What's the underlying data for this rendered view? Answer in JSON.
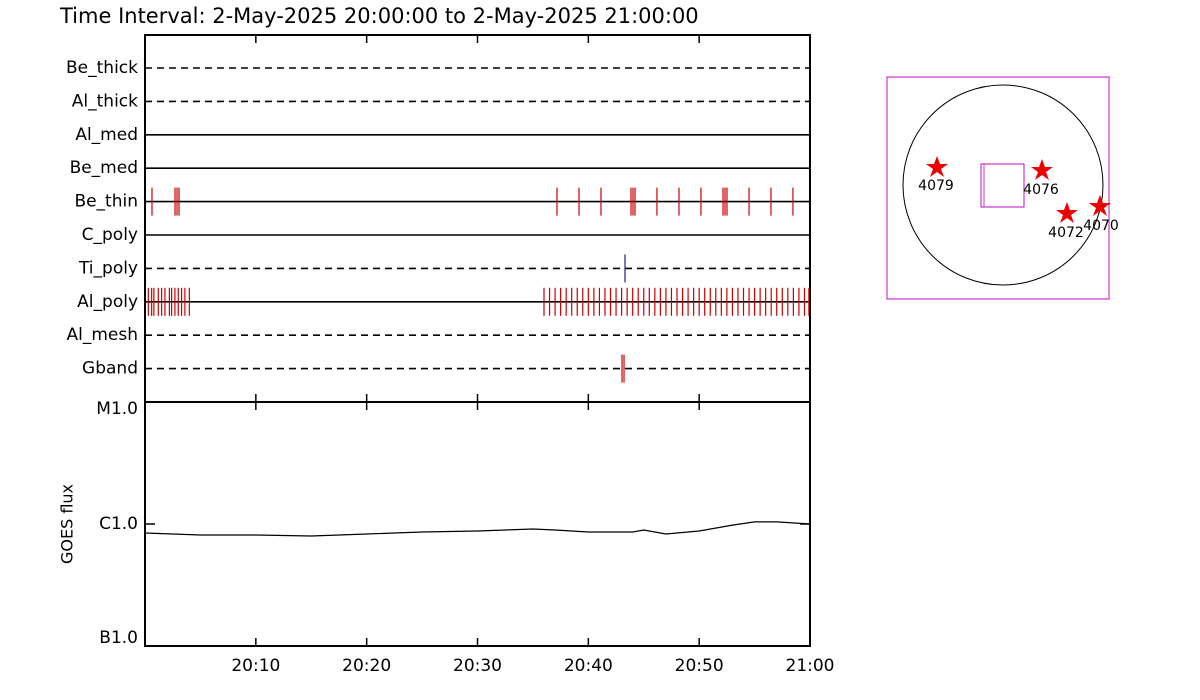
{
  "chart_data": [
    {
      "type": "timeline",
      "title": "Time Interval:  2-May-2025 20:00:00 to  2-May-2025 21:00:00",
      "xlim": [
        0,
        60
      ],
      "series": [
        {
          "name": "Be_thick",
          "line": "dashed",
          "color": "#cc0000",
          "values": []
        },
        {
          "name": "Al_thick",
          "line": "dashed",
          "color": "#cc0000",
          "values": []
        },
        {
          "name": "Al_med",
          "line": "solid",
          "color": "#cc0000",
          "values": []
        },
        {
          "name": "Be_med",
          "line": "solid",
          "color": "#cc0000",
          "values": []
        },
        {
          "name": "Be_thin",
          "line": "solid",
          "color": "#cc0000",
          "values": [
            0.63,
            2.71,
            2.89,
            3.07,
            37.17,
            39.16,
            41.14,
            43.85,
            44.03,
            44.21,
            46.19,
            48.18,
            50.16,
            52.15,
            52.33,
            52.51,
            54.5,
            56.48,
            58.46
          ]
        },
        {
          "name": "C_poly",
          "line": "solid",
          "color": "#cc0000",
          "values": []
        },
        {
          "name": "Ti_poly",
          "line": "dashed",
          "color": "#1a1a99",
          "values": [
            43.31
          ]
        },
        {
          "name": "Al_poly",
          "line": "solid",
          "color": "#cc0000",
          "values": [
            0.3,
            0.6,
            0.8,
            1.2,
            1.5,
            1.8,
            2.2,
            2.4,
            2.7,
            3.0,
            3.3,
            3.6,
            4.0,
            36.0,
            36.5,
            37.0,
            37.5,
            38.0,
            38.5,
            39.0,
            39.5,
            40.0,
            40.5,
            41.0,
            41.5,
            42.0,
            42.5,
            43.0,
            43.5,
            44.0,
            44.5,
            45.0,
            45.5,
            46.0,
            46.5,
            47.0,
            47.5,
            48.0,
            48.5,
            49.0,
            49.5,
            50.0,
            50.5,
            51.0,
            51.5,
            52.0,
            52.5,
            53.0,
            53.5,
            54.0,
            54.5,
            55.0,
            55.5,
            56.0,
            56.5,
            57.0,
            57.5,
            58.0,
            58.5,
            59.0,
            59.5,
            59.9
          ]
        },
        {
          "name": "Al_mesh",
          "line": "dashed",
          "color": "#cc0000",
          "values": []
        },
        {
          "name": "Gband",
          "line": "dashed",
          "color": "#cc0000",
          "values": [
            43.04,
            43.22
          ]
        }
      ]
    },
    {
      "type": "line",
      "ylabel": "GOES flux",
      "log": true,
      "color": "#000000",
      "x": [
        0,
        5,
        10,
        15,
        20,
        25,
        30,
        35,
        37,
        40,
        44,
        45,
        47,
        50,
        53,
        55,
        57,
        60
      ],
      "values": [
        8.44e-07,
        8.13e-07,
        8.13e-07,
        7.97e-07,
        8.28e-07,
        8.6e-07,
        8.77e-07,
        9.1e-07,
        8.93e-07,
        8.6e-07,
        8.6e-07,
        8.93e-07,
        8.28e-07,
        8.77e-07,
        9.8e-07,
        1.04e-06,
        1.04e-06,
        1e-06
      ],
      "xlim": [
        0,
        60
      ],
      "xticks": [
        {
          "value": 10,
          "label": "20:10"
        },
        {
          "value": 20,
          "label": "20:20"
        },
        {
          "value": 30,
          "label": "20:30"
        },
        {
          "value": 40,
          "label": "20:40"
        },
        {
          "value": 50,
          "label": "20:50"
        },
        {
          "value": 60,
          "label": "21:00"
        }
      ],
      "ylim": [
        1e-07,
        1e-05
      ],
      "yticks": [
        {
          "value": 1e-07,
          "label": "B1.0"
        },
        {
          "value": 1e-06,
          "label": "C1.0"
        },
        {
          "value": 1e-05,
          "label": "M1.0"
        }
      ]
    }
  ],
  "map": {
    "regions": [
      "4079",
      "4076",
      "4072",
      "4070"
    ]
  }
}
